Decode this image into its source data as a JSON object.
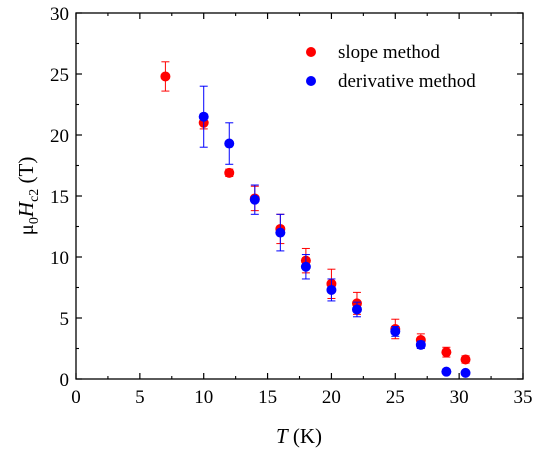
{
  "chart_data": {
    "type": "scatter",
    "title": "",
    "xlabel": {
      "italic": "T",
      "rest": " (K)"
    },
    "ylabel": {
      "mu": "μ",
      "mu_sub": "0",
      "italic": "H",
      "sub": "c2",
      "rest": " (T)"
    },
    "xlim": [
      0,
      35
    ],
    "ylim": [
      0,
      30
    ],
    "xticks": [
      0,
      5,
      10,
      15,
      20,
      25,
      30,
      35
    ],
    "yticks": [
      0,
      5,
      10,
      15,
      20,
      25,
      30
    ],
    "grid": false,
    "legend_position": "top-right",
    "series": [
      {
        "name": "slope method",
        "color": "#ff0000",
        "points": [
          {
            "x": 7.0,
            "y": 24.8,
            "err": 1.2
          },
          {
            "x": 10.0,
            "y": 21.0,
            "err": 0.5
          },
          {
            "x": 12.0,
            "y": 16.9,
            "err": 0.3
          },
          {
            "x": 14.0,
            "y": 14.8,
            "err": 1.0
          },
          {
            "x": 16.0,
            "y": 12.3,
            "err": 1.2
          },
          {
            "x": 18.0,
            "y": 9.7,
            "err": 1.0
          },
          {
            "x": 20.0,
            "y": 7.8,
            "err": 1.2
          },
          {
            "x": 22.0,
            "y": 6.2,
            "err": 0.9
          },
          {
            "x": 25.0,
            "y": 4.1,
            "err": 0.8
          },
          {
            "x": 27.0,
            "y": 3.2,
            "err": 0.5
          },
          {
            "x": 29.0,
            "y": 2.2,
            "err": 0.4
          },
          {
            "x": 30.5,
            "y": 1.6,
            "err": 0.3
          }
        ]
      },
      {
        "name": "derivative method",
        "color": "#0000ff",
        "points": [
          {
            "x": 10.0,
            "y": 21.5,
            "err": 2.5
          },
          {
            "x": 12.0,
            "y": 19.3,
            "err": 1.7
          },
          {
            "x": 14.0,
            "y": 14.7,
            "err": 1.2
          },
          {
            "x": 16.0,
            "y": 12.0,
            "err": 1.5
          },
          {
            "x": 18.0,
            "y": 9.2,
            "err": 1.0
          },
          {
            "x": 20.0,
            "y": 7.3,
            "err": 0.9
          },
          {
            "x": 22.0,
            "y": 5.7,
            "err": 0.6
          },
          {
            "x": 25.0,
            "y": 3.9,
            "err": 0.4
          },
          {
            "x": 27.0,
            "y": 2.8,
            "err": 0.3
          },
          {
            "x": 29.0,
            "y": 0.6,
            "err": 0.0
          },
          {
            "x": 30.5,
            "y": 0.5,
            "err": 0.0
          }
        ]
      }
    ]
  }
}
